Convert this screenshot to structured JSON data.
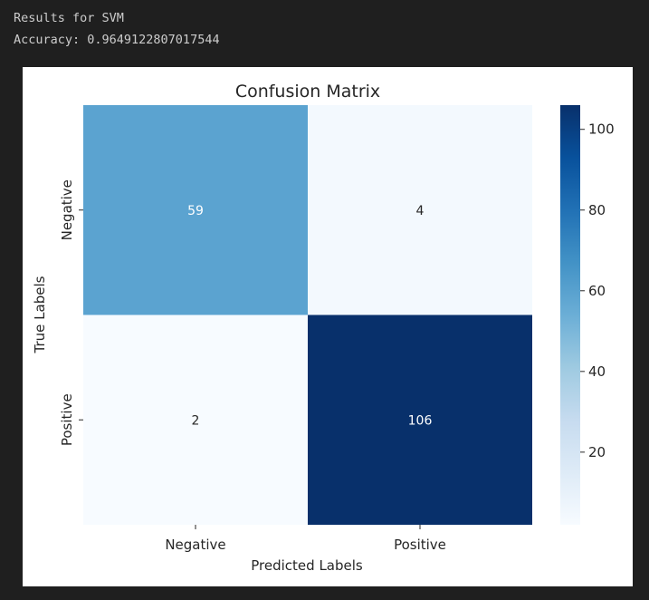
{
  "console": {
    "line1": "Results for SVM",
    "line2": "Accuracy: 0.9649122807017544"
  },
  "chart_data": {
    "type": "heatmap",
    "title": "Confusion Matrix",
    "xlabel": "Predicted Labels",
    "ylabel": "True Labels",
    "x_categories": [
      "Negative",
      "Positive"
    ],
    "y_categories": [
      "Negative",
      "Positive"
    ],
    "values": [
      [
        59,
        4
      ],
      [
        2,
        106
      ]
    ],
    "colormap": "Blues",
    "vmin": 2,
    "vmax": 106,
    "colorbar_ticks": [
      "20",
      "40",
      "60",
      "80",
      "100"
    ],
    "annotation_color_light": "#ffffff",
    "annotation_color_dark": "#262626"
  }
}
